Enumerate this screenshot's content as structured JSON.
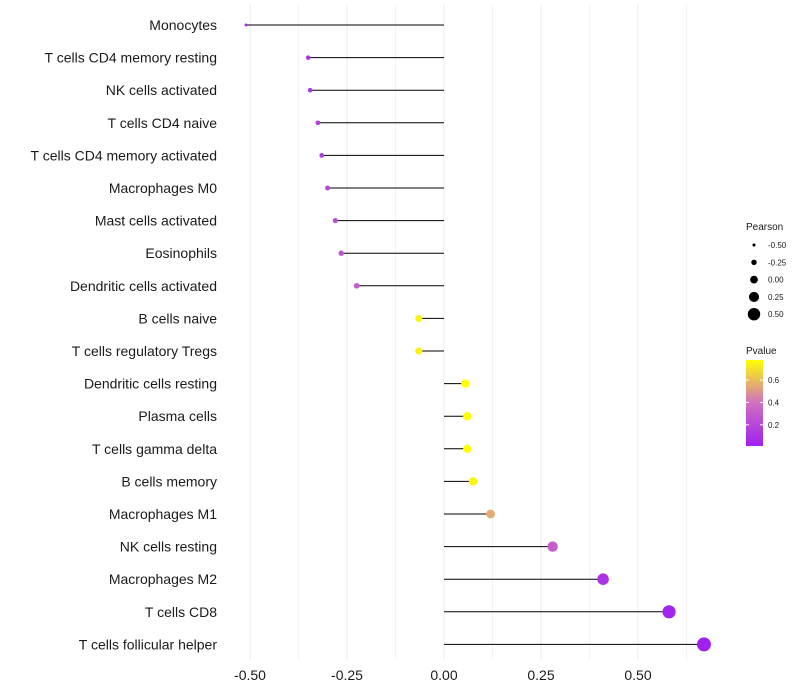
{
  "chart_data": {
    "type": "lollipop",
    "title": "",
    "xlabel": "",
    "ylabel": "",
    "xlim": [
      -0.53,
      0.7
    ],
    "x_ticks": [
      -0.5,
      -0.25,
      0.0,
      0.25,
      0.5
    ],
    "x_tick_labels": [
      "-0.50",
      "-0.25",
      "0.00",
      "0.25",
      "0.50"
    ],
    "grid": true,
    "categories": [
      "Monocytes",
      "T cells CD4 memory resting",
      "NK cells activated",
      "T cells CD4 naive",
      "T cells CD4 memory activated",
      "Macrophages M0",
      "Mast cells activated",
      "Eosinophils",
      "Dendritic cells activated",
      "B cells naive",
      "T cells regulatory  Tregs ",
      "Dendritic cells resting",
      "Plasma cells",
      "T cells gamma delta",
      "B cells memory",
      "Macrophages M1",
      "NK cells resting",
      "Macrophages M2",
      "T cells CD8",
      "T cells follicular helper"
    ],
    "pearson": [
      -0.51,
      -0.35,
      -0.345,
      -0.325,
      -0.315,
      -0.3,
      -0.28,
      -0.265,
      -0.225,
      -0.065,
      -0.065,
      0.055,
      0.06,
      0.06,
      0.075,
      0.12,
      0.28,
      0.41,
      0.58,
      0.67
    ],
    "pvalue": [
      0.05,
      0.1,
      0.1,
      0.15,
      0.15,
      0.2,
      0.22,
      0.25,
      0.3,
      0.75,
      0.75,
      0.78,
      0.78,
      0.78,
      0.75,
      0.55,
      0.3,
      0.1,
      0.03,
      0.01
    ],
    "size_legend": {
      "title": "Pearson",
      "values": [
        -0.5,
        -0.25,
        0.0,
        0.25,
        0.5
      ],
      "labels": [
        "-0.50",
        "-0.25",
        "0.00",
        "0.25",
        "0.50"
      ]
    },
    "color_legend": {
      "title": "Pvalue",
      "range": [
        0.01,
        0.78
      ],
      "ticks": [
        0.2,
        0.4,
        0.6
      ],
      "tick_labels": [
        "0.2",
        "0.4",
        "0.6"
      ],
      "low_color": "#a020f0",
      "high_color": "#ffff00"
    }
  }
}
